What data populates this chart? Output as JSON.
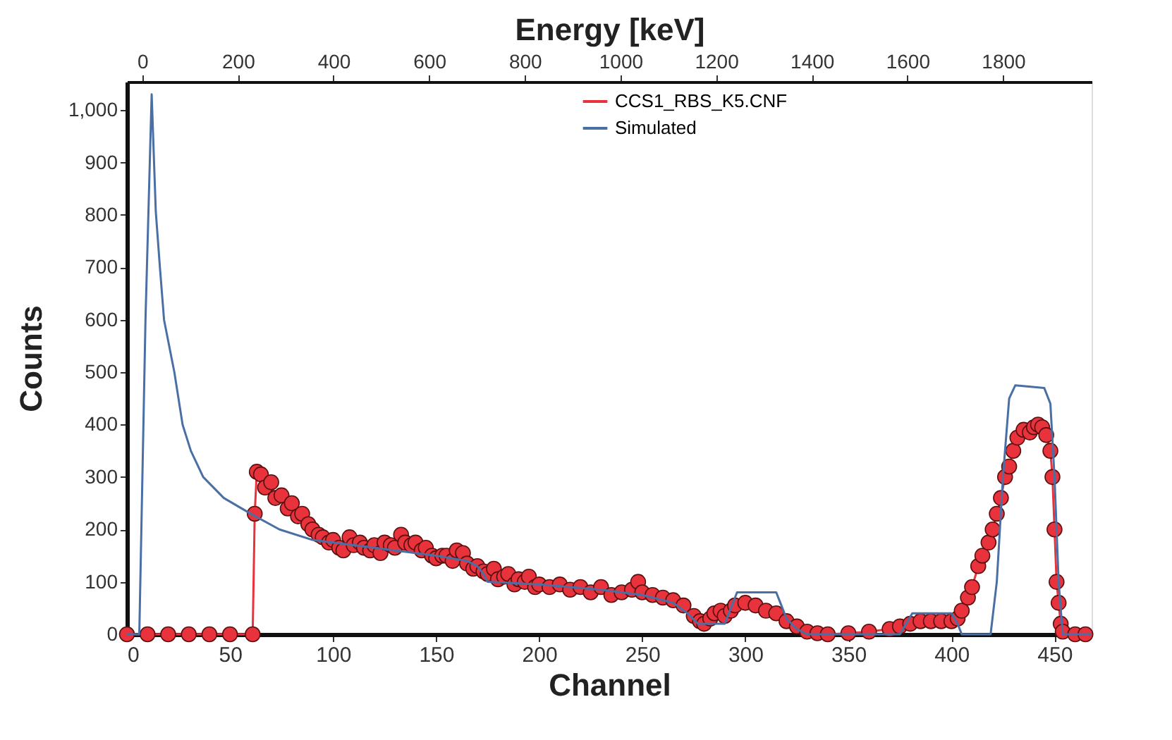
{
  "chart_data": {
    "type": "line",
    "xlabel": "Channel",
    "ylabel": "Counts",
    "x2label": "Energy [keV]",
    "xlim": [
      0,
      468
    ],
    "xticks": [
      0,
      50,
      100,
      150,
      200,
      250,
      300,
      350,
      400,
      450
    ],
    "x2lim": [
      -32,
      1985
    ],
    "x2ticks": [
      0,
      200,
      400,
      600,
      800,
      1000,
      1200,
      1400,
      1600,
      1800
    ],
    "ylim": [
      0,
      1054
    ],
    "yticks": [
      0,
      100,
      200,
      300,
      400,
      500,
      600,
      700,
      800,
      900,
      {
        "value": 1000,
        "label": "1,000"
      }
    ],
    "grid": false,
    "legend": "top",
    "series": [
      {
        "name": "CCS1_RBS_K5.CNF",
        "color": "#e8323c",
        "marker": "circle",
        "x": [
          0,
          10,
          20,
          30,
          40,
          50,
          61,
          62,
          63,
          65,
          67,
          70,
          72,
          75,
          78,
          80,
          83,
          85,
          88,
          90,
          93,
          95,
          98,
          100,
          103,
          105,
          108,
          110,
          113,
          115,
          118,
          120,
          123,
          125,
          128,
          130,
          133,
          135,
          138,
          140,
          143,
          145,
          148,
          150,
          153,
          155,
          158,
          160,
          163,
          165,
          168,
          170,
          173,
          175,
          178,
          180,
          183,
          185,
          188,
          190,
          193,
          195,
          198,
          200,
          205,
          210,
          215,
          220,
          225,
          230,
          235,
          240,
          245,
          248,
          250,
          255,
          260,
          265,
          270,
          275,
          278,
          280,
          283,
          285,
          288,
          290,
          293,
          295,
          300,
          305,
          310,
          315,
          320,
          325,
          330,
          335,
          340,
          350,
          360,
          370,
          375,
          380,
          385,
          390,
          395,
          400,
          403,
          405,
          408,
          410,
          413,
          415,
          418,
          420,
          422,
          424,
          426,
          428,
          430,
          432,
          435,
          438,
          440,
          442,
          444,
          446,
          448,
          449,
          450,
          451,
          452,
          453,
          454,
          460,
          465
        ],
        "values": [
          0,
          0,
          0,
          0,
          0,
          0,
          0,
          230,
          310,
          305,
          280,
          290,
          260,
          265,
          240,
          250,
          225,
          230,
          210,
          200,
          190,
          185,
          175,
          180,
          165,
          160,
          185,
          170,
          175,
          165,
          160,
          170,
          155,
          175,
          170,
          165,
          190,
          175,
          170,
          175,
          160,
          165,
          150,
          145,
          150,
          150,
          140,
          160,
          155,
          135,
          125,
          130,
          120,
          115,
          125,
          105,
          110,
          115,
          95,
          105,
          100,
          110,
          90,
          95,
          90,
          95,
          85,
          90,
          80,
          90,
          75,
          80,
          85,
          100,
          80,
          75,
          70,
          65,
          55,
          35,
          25,
          20,
          30,
          40,
          45,
          35,
          45,
          55,
          60,
          55,
          45,
          40,
          25,
          15,
          5,
          2,
          0,
          2,
          5,
          10,
          15,
          20,
          25,
          25,
          25,
          25,
          30,
          45,
          70,
          90,
          130,
          150,
          175,
          200,
          230,
          260,
          300,
          320,
          350,
          375,
          390,
          385,
          395,
          400,
          395,
          380,
          350,
          300,
          200,
          100,
          60,
          20,
          5,
          0,
          0
        ]
      },
      {
        "name": "Simulated",
        "color": "#4a6fa5",
        "marker": "none",
        "x": [
          0,
          5,
          6,
          9,
          12,
          14,
          16,
          18,
          23,
          27,
          31,
          37,
          47,
          60,
          74,
          90,
          120,
          150,
          165,
          170,
          173,
          175,
          200,
          230,
          250,
          265,
          272,
          277,
          290,
          293,
          296,
          315,
          317,
          320,
          325,
          330,
          375,
          378,
          381,
          400,
          403,
          405,
          419,
          422,
          425,
          428,
          431,
          445,
          448,
          450,
          452,
          454,
          468
        ],
        "values": [
          0,
          0,
          0,
          600,
          1030,
          806,
          700,
          600,
          500,
          400,
          350,
          300,
          260,
          230,
          200,
          180,
          165,
          150,
          140,
          130,
          115,
          100,
          95,
          85,
          75,
          60,
          40,
          20,
          20,
          50,
          80,
          80,
          60,
          30,
          10,
          0,
          0,
          20,
          40,
          40,
          20,
          0,
          0,
          100,
          300,
          450,
          475,
          470,
          440,
          300,
          100,
          0,
          0
        ]
      }
    ]
  }
}
